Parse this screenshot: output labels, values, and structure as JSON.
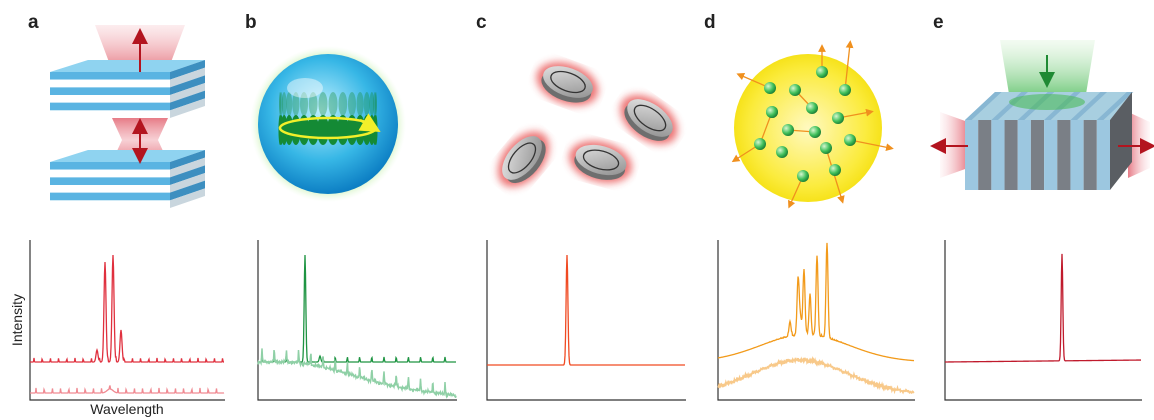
{
  "panels": [
    {
      "label": "a"
    },
    {
      "label": "b"
    },
    {
      "label": "c"
    },
    {
      "label": "d"
    },
    {
      "label": "e"
    }
  ],
  "axes": {
    "y_label": "Intensity",
    "x_label": "Wavelength"
  }
}
